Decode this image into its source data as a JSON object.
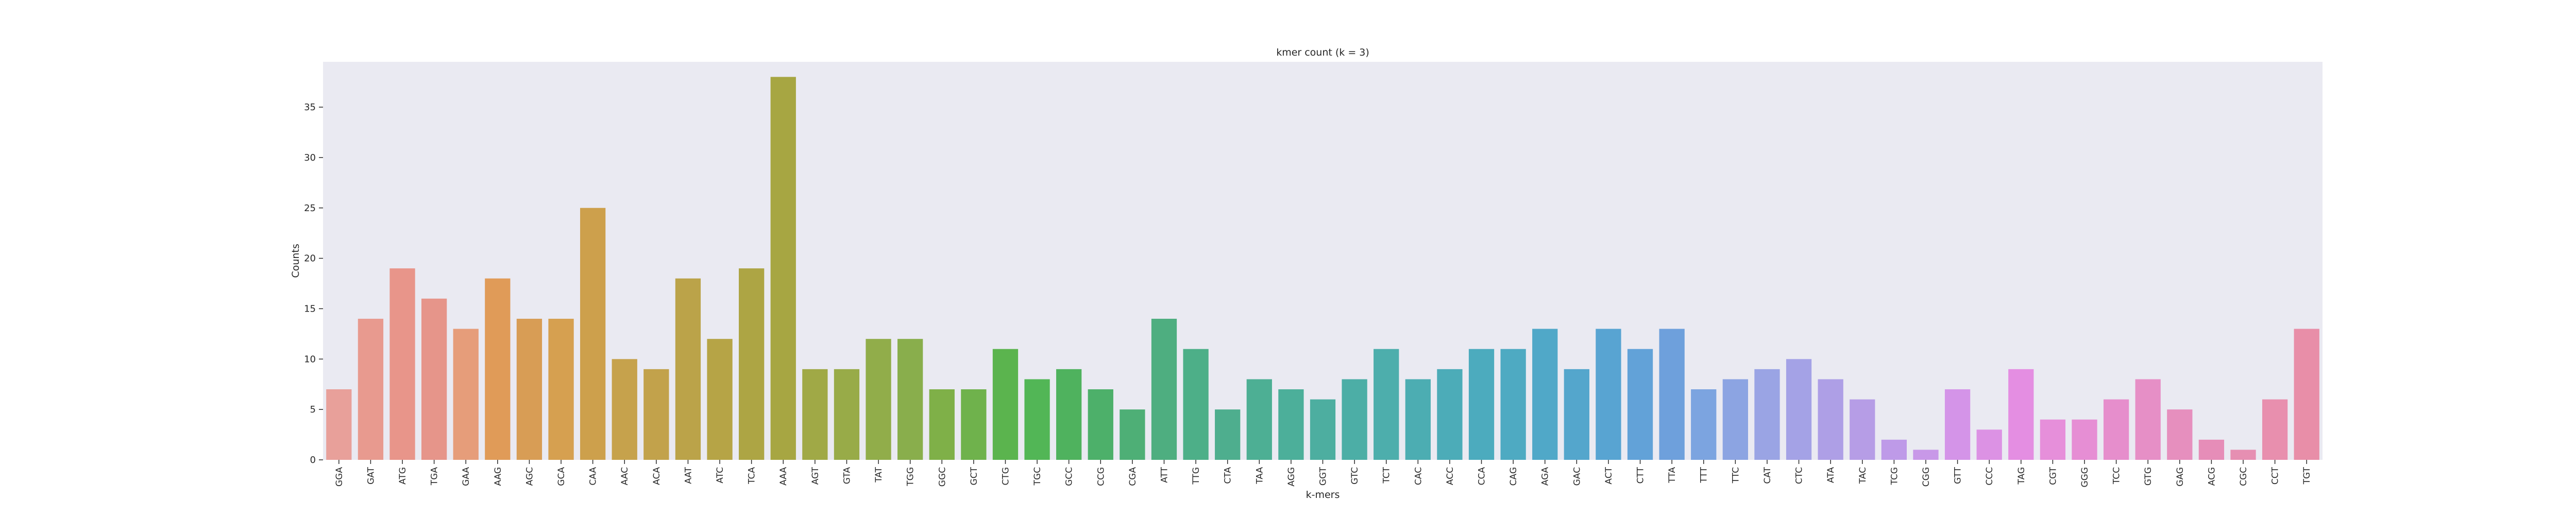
{
  "chart_data": {
    "type": "bar",
    "title": "kmer count (k = 3)",
    "xlabel": "k-mers",
    "ylabel": "Counts",
    "ylim": [
      0,
      39.5
    ],
    "yticks": [
      0,
      5,
      10,
      15,
      20,
      25,
      30,
      35
    ],
    "grid": false,
    "background_color": "#eaeaf2",
    "categories": [
      "GGA",
      "GAT",
      "ATG",
      "TGA",
      "GAA",
      "AAG",
      "AGC",
      "GCA",
      "CAA",
      "AAC",
      "ACA",
      "AAT",
      "ATC",
      "TCA",
      "AAA",
      "AGT",
      "GTA",
      "TAT",
      "TGG",
      "GGC",
      "GCT",
      "CTG",
      "TGC",
      "GCC",
      "CCG",
      "CGA",
      "ATT",
      "TTG",
      "CTA",
      "TAA",
      "AGG",
      "GGT",
      "GTC",
      "TCT",
      "CAC",
      "ACC",
      "CCA",
      "CAG",
      "AGA",
      "GAC",
      "ACT",
      "CTT",
      "TTA",
      "TTT",
      "TTC",
      "CAT",
      "CTC",
      "ATA",
      "TAC",
      "TCG",
      "CGG",
      "GTT",
      "CCC",
      "TAG",
      "CGT",
      "GGG",
      "TCC",
      "GTG",
      "GAG",
      "ACG",
      "CGC",
      "CCT",
      "TGT"
    ],
    "values": [
      7,
      14,
      19,
      16,
      13,
      18,
      14,
      14,
      25,
      10,
      9,
      18,
      12,
      19,
      38,
      9,
      9,
      12,
      12,
      7,
      7,
      11,
      8,
      9,
      7,
      5,
      14,
      11,
      5,
      8,
      7,
      6,
      8,
      11,
      8,
      9,
      11,
      11,
      13,
      9,
      13,
      11,
      13,
      7,
      8,
      9,
      10,
      8,
      6,
      2,
      1,
      7,
      3,
      9,
      4,
      4,
      6,
      8,
      5,
      2,
      1,
      6,
      13
    ],
    "colors": [
      "#e8a09a",
      "#e89a8f",
      "#e8958a",
      "#e6958a",
      "#e69d7a",
      "#e09b58",
      "#d89d55",
      "#d6a050",
      "#cda04c",
      "#c6a24c",
      "#c2a24b",
      "#bba349",
      "#b6a446",
      "#ada544",
      "#a7a642",
      "#a0a946",
      "#98ab48",
      "#91ad4a",
      "#89ae4c",
      "#7fb048",
      "#6fb24c",
      "#5bb44e",
      "#52b656",
      "#4fb25e",
      "#4db06a",
      "#4eaf76",
      "#4eae80",
      "#4daf88",
      "#4eae8e",
      "#4daf94",
      "#4caf9a",
      "#4daea0",
      "#4caea6",
      "#4daeac",
      "#4cadb2",
      "#4cacb8",
      "#4cabbe",
      "#4eaac2",
      "#50a8c8",
      "#54a6cc",
      "#58a4d2",
      "#62a2d8",
      "#6ea0dc",
      "#7ca4e0",
      "#8ca4e2",
      "#9aa4e4",
      "#a4a2e6",
      "#ae9fe6",
      "#b69de6",
      "#be9ae8",
      "#c898e8",
      "#d494e8",
      "#dc92e4",
      "#e48ee2",
      "#e68fda",
      "#e68ed4",
      "#e68ecc",
      "#e68fc6",
      "#e68fbe",
      "#e68db8",
      "#e68fb2",
      "#e88fae",
      "#e88ea8"
    ]
  }
}
